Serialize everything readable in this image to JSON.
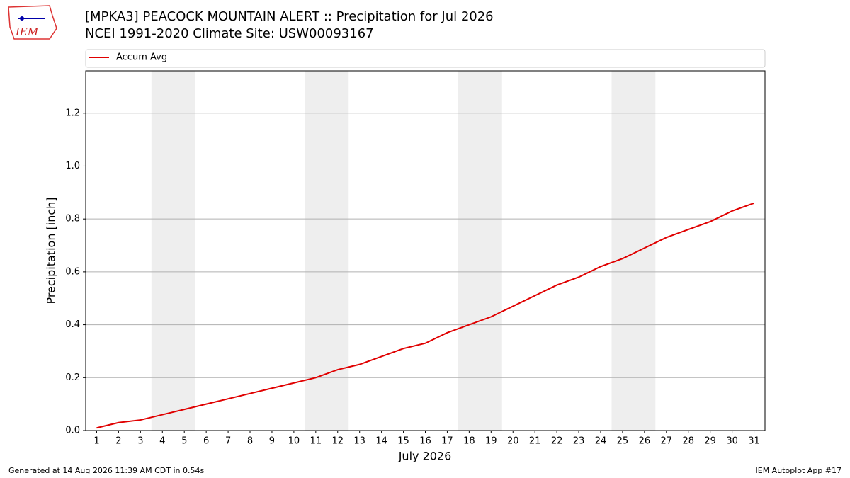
{
  "chart_data": {
    "type": "line",
    "title": "[MPKA3] PEACOCK MOUNTAIN ALERT :: Precipitation for Jul 2026",
    "subtitle": "NCEI 1991-2020 Climate Site: USW00093167",
    "x_label": "July 2026",
    "y_label": "Precipitation [inch]",
    "x": [
      1,
      2,
      3,
      4,
      5,
      6,
      7,
      8,
      9,
      10,
      11,
      12,
      13,
      14,
      15,
      16,
      17,
      18,
      19,
      20,
      21,
      22,
      23,
      24,
      25,
      26,
      27,
      28,
      29,
      30,
      31
    ],
    "series": [
      {
        "name": "Accum Avg",
        "color": "#e00000",
        "values": [
          0.01,
          0.03,
          0.04,
          0.06,
          0.08,
          0.1,
          0.12,
          0.14,
          0.16,
          0.18,
          0.2,
          0.23,
          0.25,
          0.28,
          0.31,
          0.33,
          0.37,
          0.4,
          0.43,
          0.47,
          0.51,
          0.55,
          0.58,
          0.62,
          0.65,
          0.69,
          0.73,
          0.76,
          0.79,
          0.83,
          0.86
        ]
      }
    ],
    "xlim": [
      0.5,
      31.5
    ],
    "xticks": [
      1,
      2,
      3,
      4,
      5,
      6,
      7,
      8,
      9,
      10,
      11,
      12,
      13,
      14,
      15,
      16,
      17,
      18,
      19,
      20,
      21,
      22,
      23,
      24,
      25,
      26,
      27,
      28,
      29,
      30,
      31
    ],
    "ylim": [
      0,
      1.36
    ],
    "yticks": [
      {
        "value": 0,
        "label": "0.0"
      },
      0.2,
      0.4,
      0.6,
      0.8,
      {
        "value": 1,
        "label": "1.0"
      },
      1.2
    ],
    "grid": true,
    "shaded_spans": [
      [
        3.5,
        5.5
      ],
      [
        10.5,
        12.5
      ],
      [
        17.5,
        19.5
      ],
      [
        24.5,
        26.5
      ]
    ],
    "shade_color": "#eeeeee",
    "legend": "top",
    "logo_text": "IEM",
    "footer_left": "Generated at 14 Aug 2026 11:39 AM CDT in 0.54s",
    "footer_right": "IEM Autoplot App #17"
  }
}
